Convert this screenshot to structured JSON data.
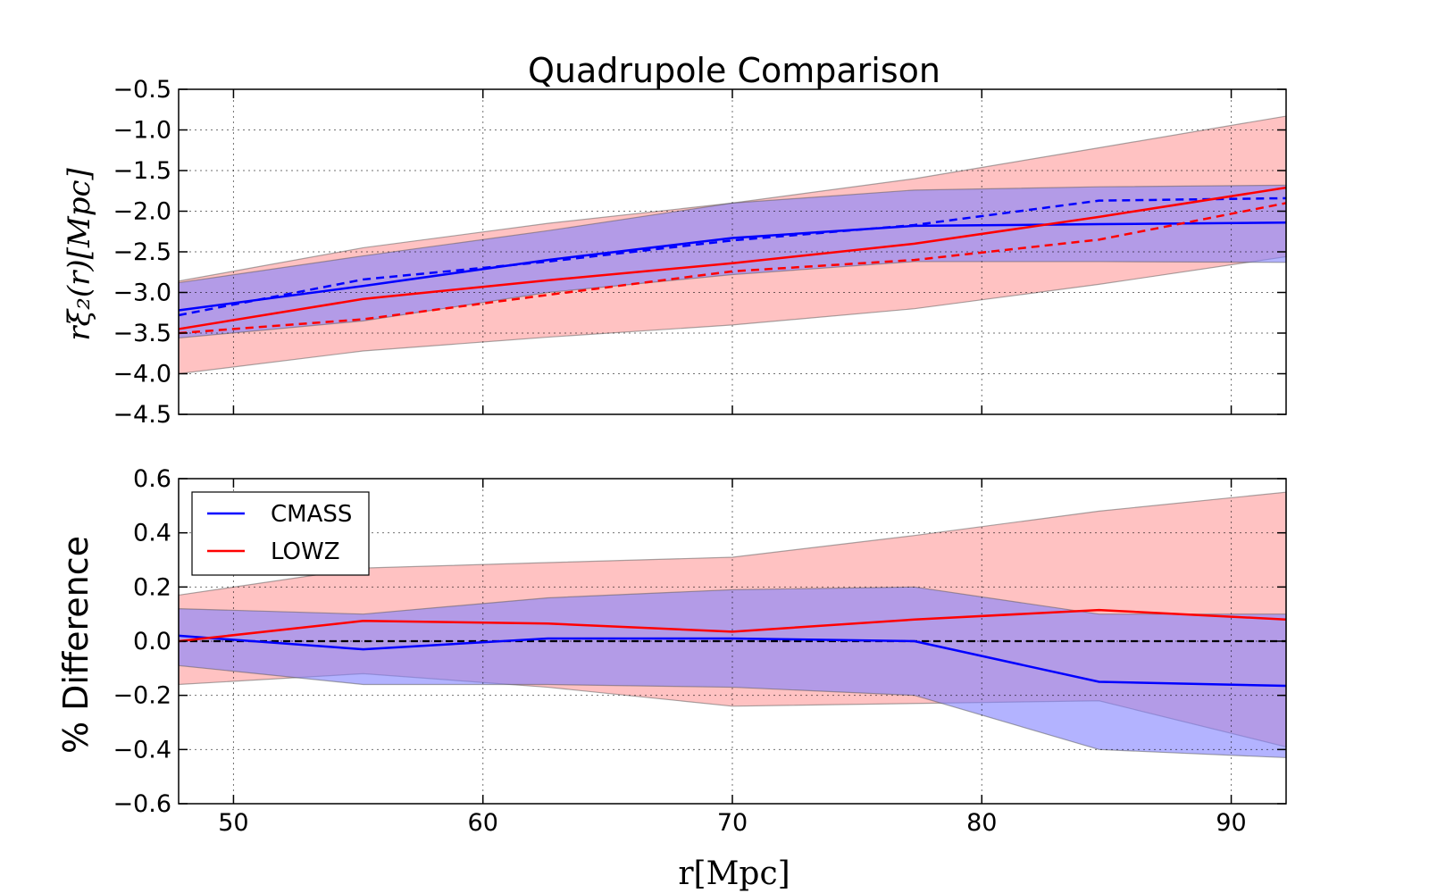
{
  "title": "Quadrupole Comparison",
  "chart_data": [
    {
      "type": "line",
      "panel": "top",
      "title": "Quadrupole Comparison",
      "xlabel": "",
      "ylabel": "rξ₂(r)[Mpc]",
      "xlim": [
        47.8,
        92.2
      ],
      "ylim": [
        -4.5,
        -0.5
      ],
      "x_ticks": [
        50,
        60,
        70,
        80,
        90
      ],
      "y_ticks": [
        -0.5,
        -1.0,
        -1.5,
        -2.0,
        -2.5,
        -3.0,
        -3.5,
        -4.0,
        -4.5
      ],
      "y_tick_labels": [
        "−0.5",
        "−1.0",
        "−1.5",
        "−2.0",
        "−2.5",
        "−3.0",
        "−3.5",
        "−4.0",
        "−4.5"
      ],
      "x": [
        47.8,
        55.2,
        62.6,
        70.0,
        77.3,
        84.7,
        92.2
      ],
      "grid": true,
      "bands": [
        {
          "name": "LOWZ band",
          "color": "#ff9999",
          "lower": [
            -4.0,
            -3.72,
            -3.55,
            -3.4,
            -3.2,
            -2.9,
            -2.56
          ],
          "upper": [
            -2.86,
            -2.45,
            -2.15,
            -1.9,
            -1.6,
            -1.22,
            -0.83
          ]
        },
        {
          "name": "CMASS band",
          "color": "#8080ff",
          "lower": [
            -3.56,
            -3.35,
            -3.0,
            -2.78,
            -2.62,
            -2.62,
            -2.63
          ],
          "upper": [
            -2.88,
            -2.55,
            -2.24,
            -1.9,
            -1.74,
            -1.7,
            -1.68
          ]
        }
      ],
      "series": [
        {
          "name": "CMASS",
          "color": "#0000ff",
          "style": "solid",
          "values": [
            -3.22,
            -2.92,
            -2.6,
            -2.33,
            -2.18,
            -2.16,
            -2.14
          ]
        },
        {
          "name": "CMASS",
          "color": "#0000ff",
          "style": "dashed",
          "values": [
            -3.28,
            -2.84,
            -2.62,
            -2.36,
            -2.17,
            -1.87,
            -1.84
          ]
        },
        {
          "name": "LOWZ",
          "color": "#ff0000",
          "style": "solid",
          "values": [
            -3.45,
            -3.08,
            -2.85,
            -2.64,
            -2.4,
            -2.07,
            -1.71
          ]
        },
        {
          "name": "LOWZ",
          "color": "#ff0000",
          "style": "dashed",
          "values": [
            -3.5,
            -3.33,
            -3.03,
            -2.74,
            -2.6,
            -2.35,
            -1.9
          ]
        }
      ]
    },
    {
      "type": "line",
      "panel": "bottom",
      "title": "",
      "xlabel": "r[Mpc]",
      "ylabel": "% Difference",
      "xlim": [
        47.8,
        92.2
      ],
      "ylim": [
        -0.6,
        0.6
      ],
      "x_ticks": [
        50,
        60,
        70,
        80,
        90
      ],
      "y_ticks": [
        0.6,
        0.4,
        0.2,
        0.0,
        -0.2,
        -0.4,
        -0.6
      ],
      "y_tick_labels": [
        "0.6",
        "0.4",
        "0.2",
        "0.0",
        "−0.2",
        "−0.4",
        "−0.6"
      ],
      "x": [
        47.8,
        55.2,
        62.6,
        70.0,
        77.3,
        84.7,
        92.2
      ],
      "grid": true,
      "reference_line": {
        "y": 0.0,
        "color": "#000000",
        "style": "dashed"
      },
      "legend": {
        "position": "upper-left",
        "entries": [
          {
            "label": "CMASS",
            "color": "#0000ff"
          },
          {
            "label": "LOWZ",
            "color": "#ff0000"
          }
        ]
      },
      "bands": [
        {
          "name": "LOWZ band",
          "color": "#ff9999",
          "lower": [
            -0.16,
            -0.12,
            -0.17,
            -0.24,
            -0.23,
            -0.22,
            -0.39
          ],
          "upper": [
            0.17,
            0.27,
            0.29,
            0.31,
            0.39,
            0.48,
            0.55
          ]
        },
        {
          "name": "CMASS band",
          "color": "#8080ff",
          "lower": [
            -0.09,
            -0.16,
            -0.16,
            -0.17,
            -0.2,
            -0.4,
            -0.43
          ],
          "upper": [
            0.12,
            0.1,
            0.16,
            0.19,
            0.2,
            0.1,
            0.1
          ]
        }
      ],
      "series": [
        {
          "name": "CMASS",
          "color": "#0000ff",
          "style": "solid",
          "values": [
            0.02,
            -0.03,
            0.01,
            0.01,
            0.0,
            -0.15,
            -0.165
          ]
        },
        {
          "name": "LOWZ",
          "color": "#ff0000",
          "style": "solid",
          "values": [
            0.0,
            0.075,
            0.065,
            0.035,
            0.08,
            0.115,
            0.08
          ]
        }
      ]
    }
  ]
}
